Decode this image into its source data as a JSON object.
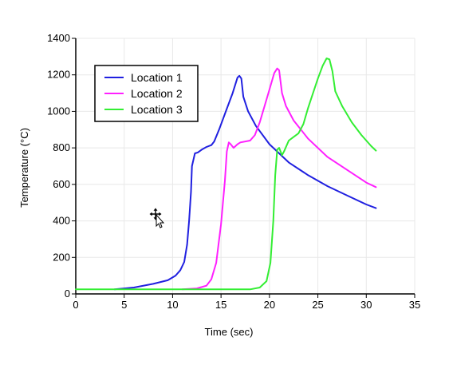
{
  "chart_data": {
    "type": "line",
    "title": "",
    "xlabel": "Time (sec)",
    "ylabel": "Temperature (°C)",
    "xlim": [
      0,
      35
    ],
    "ylim": [
      0,
      1400
    ],
    "xticks": [
      "0",
      "5",
      "10",
      "15",
      "20",
      "25",
      "30",
      "35"
    ],
    "yticks": [
      "0",
      "200",
      "400",
      "600",
      "800",
      "1000",
      "1200",
      "1400"
    ],
    "grid": true,
    "legend": "top-left",
    "series": [
      {
        "name": "Location 1",
        "color": "#2020e0",
        "points": [
          [
            4,
            25
          ],
          [
            6,
            35
          ],
          [
            8,
            55
          ],
          [
            9.5,
            75
          ],
          [
            10.3,
            100
          ],
          [
            10.8,
            130
          ],
          [
            11.2,
            175
          ],
          [
            11.5,
            270
          ],
          [
            11.7,
            400
          ],
          [
            11.9,
            560
          ],
          [
            12,
            700
          ],
          [
            12.3,
            770
          ],
          [
            12.6,
            775
          ],
          [
            13,
            790
          ],
          [
            13.5,
            805
          ],
          [
            14,
            815
          ],
          [
            14.3,
            835
          ],
          [
            14.8,
            900
          ],
          [
            15.5,
            1000
          ],
          [
            16.2,
            1100
          ],
          [
            16.7,
            1185
          ],
          [
            16.9,
            1195
          ],
          [
            17.1,
            1180
          ],
          [
            17.3,
            1080
          ],
          [
            17.8,
            1000
          ],
          [
            18.6,
            920
          ],
          [
            20,
            820
          ],
          [
            22,
            720
          ],
          [
            24,
            650
          ],
          [
            26,
            590
          ],
          [
            28,
            540
          ],
          [
            30,
            490
          ],
          [
            31,
            470
          ]
        ]
      },
      {
        "name": "Location 2",
        "color": "#ff20ff",
        "points": [
          [
            11,
            25
          ],
          [
            12.5,
            30
          ],
          [
            13.5,
            45
          ],
          [
            14,
            80
          ],
          [
            14.5,
            170
          ],
          [
            15,
            380
          ],
          [
            15.4,
            620
          ],
          [
            15.6,
            780
          ],
          [
            15.8,
            830
          ],
          [
            16,
            820
          ],
          [
            16.3,
            800
          ],
          [
            16.7,
            820
          ],
          [
            17,
            830
          ],
          [
            18,
            840
          ],
          [
            18.5,
            870
          ],
          [
            19,
            940
          ],
          [
            19.5,
            1030
          ],
          [
            20,
            1120
          ],
          [
            20.5,
            1210
          ],
          [
            20.8,
            1235
          ],
          [
            21,
            1225
          ],
          [
            21.3,
            1100
          ],
          [
            21.7,
            1030
          ],
          [
            22.5,
            950
          ],
          [
            24,
            850
          ],
          [
            26,
            750
          ],
          [
            28,
            680
          ],
          [
            30,
            610
          ],
          [
            31,
            585
          ]
        ]
      },
      {
        "name": "Location 3",
        "color": "#33ee33",
        "points": [
          [
            0,
            25
          ],
          [
            18,
            25
          ],
          [
            19,
            35
          ],
          [
            19.7,
            70
          ],
          [
            20.1,
            170
          ],
          [
            20.4,
            400
          ],
          [
            20.6,
            650
          ],
          [
            20.8,
            790
          ],
          [
            21,
            800
          ],
          [
            21.3,
            760
          ],
          [
            21.5,
            780
          ],
          [
            22,
            840
          ],
          [
            22.5,
            860
          ],
          [
            23,
            880
          ],
          [
            23.5,
            930
          ],
          [
            24,
            1020
          ],
          [
            24.5,
            1100
          ],
          [
            25,
            1180
          ],
          [
            25.5,
            1250
          ],
          [
            25.9,
            1290
          ],
          [
            26.2,
            1285
          ],
          [
            26.5,
            1220
          ],
          [
            26.8,
            1110
          ],
          [
            27.5,
            1030
          ],
          [
            28.5,
            940
          ],
          [
            29.5,
            870
          ],
          [
            30.5,
            810
          ],
          [
            31,
            785
          ]
        ]
      }
    ]
  }
}
